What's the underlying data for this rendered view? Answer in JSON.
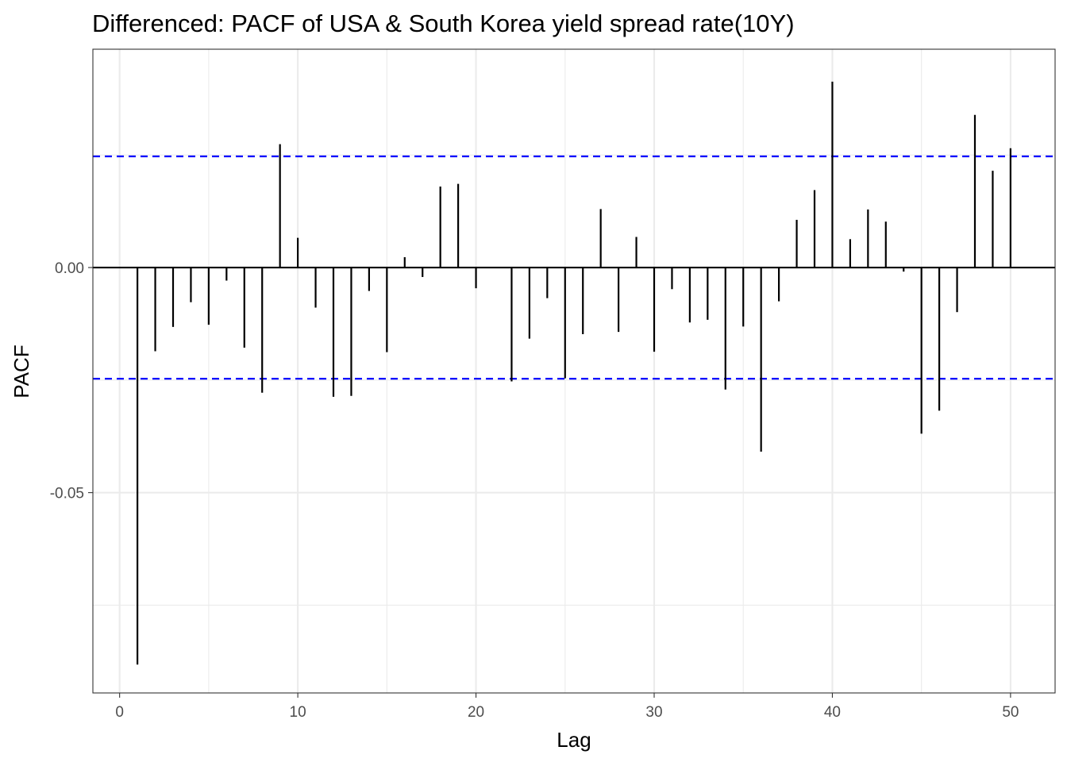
{
  "chart_data": {
    "type": "bar",
    "title": "Differenced: PACF of USA & South Korea yield spread rate(10Y)",
    "xlabel": "Lag",
    "ylabel": "PACF",
    "xlim": [
      -1.5,
      52.5
    ],
    "ylim": [
      -0.0945,
      0.0485
    ],
    "x_ticks": [
      0,
      10,
      20,
      30,
      40,
      50
    ],
    "x_tick_labels": [
      "0",
      "10",
      "20",
      "30",
      "40",
      "50"
    ],
    "y_ticks": [
      0.0,
      -0.05
    ],
    "y_tick_labels": [
      "0.00",
      "-0.05"
    ],
    "y_minor_grid": [
      0.025,
      -0.025,
      -0.075
    ],
    "x_minor_grid": [
      5,
      15,
      25,
      35,
      45
    ],
    "grid": true,
    "ci_upper": 0.0247,
    "ci_lower": -0.0247,
    "ci_color": "#0000ff",
    "bar_color": "#000000",
    "lags": [
      1,
      2,
      3,
      4,
      5,
      6,
      7,
      8,
      9,
      10,
      11,
      12,
      13,
      14,
      15,
      16,
      17,
      18,
      19,
      20,
      21,
      22,
      23,
      24,
      25,
      26,
      27,
      28,
      29,
      30,
      31,
      32,
      33,
      34,
      35,
      36,
      37,
      38,
      39,
      40,
      41,
      42,
      43,
      44,
      45,
      46,
      47,
      48,
      49,
      50
    ],
    "values": [
      -0.0882,
      -0.0186,
      -0.0132,
      -0.0077,
      -0.0127,
      -0.0029,
      -0.0178,
      -0.0278,
      0.0274,
      0.0066,
      -0.0089,
      -0.0287,
      -0.0285,
      -0.0052,
      -0.0188,
      0.0023,
      -0.0021,
      0.018,
      0.0186,
      -0.0046,
      0.0,
      -0.0253,
      -0.0158,
      -0.0068,
      -0.0246,
      -0.0148,
      0.013,
      -0.0143,
      0.0068,
      -0.0187,
      -0.0048,
      -0.0122,
      -0.0116,
      -0.0271,
      -0.0131,
      -0.0409,
      -0.0075,
      0.0106,
      0.0172,
      0.0413,
      0.0063,
      0.0129,
      0.0102,
      -0.0009,
      -0.0369,
      -0.0318,
      -0.0099,
      0.0339,
      0.0215,
      0.0265
    ]
  }
}
